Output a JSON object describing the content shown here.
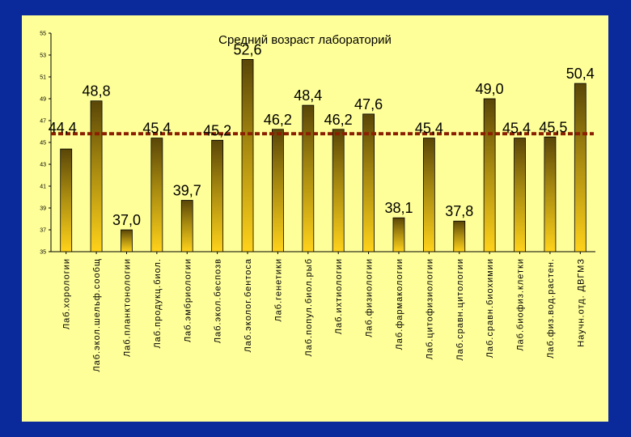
{
  "chart_data": {
    "type": "bar",
    "title": "Средний возраст лабораторий",
    "categories": [
      "Лаб.хорологии",
      "Лаб.экол.шельф.сообщ",
      "Лаб.планктонологии",
      "Лаб.продукц.биол.",
      "Лаб.эмбриологии",
      "Лаб.экол.беспозв",
      "Лаб.эколог.бентоса",
      "Лаб.генетики",
      "Лаб.попул.биол.рыб",
      "Лаб.ихтиологии",
      "Лаб.физиологии",
      "Лаб.фармакологии",
      "Лаб.цитофизиологии",
      "Лаб.сравн.цитологии",
      "Лаб.сравн.биохимии",
      "Лаб.биофиз.клетки",
      "Лаб.физ.вод.растен.",
      "Научн.отд. ДВГМЗ"
    ],
    "values": [
      44.4,
      48.8,
      37.0,
      45.4,
      39.7,
      45.2,
      52.6,
      46.2,
      48.4,
      46.2,
      47.6,
      38.1,
      45.4,
      37.8,
      49.0,
      45.4,
      45.5,
      50.4
    ],
    "data_labels": [
      "44,4",
      "48,8",
      "37,0",
      "45,4",
      "39,7",
      "45,2",
      "52,6",
      "46,2",
      "48,4",
      "46,2",
      "47,6",
      "38,1",
      "45,4",
      "37,8",
      "49,0",
      "45,4",
      "45,5",
      "50,4"
    ],
    "yticks": [
      "35",
      "37",
      "39",
      "41",
      "43",
      "45",
      "47",
      "49",
      "51",
      "53",
      "55"
    ],
    "ylim": [
      35,
      55
    ],
    "average_line": 45.8,
    "grid": false,
    "colors": {
      "background": "#ffff99",
      "frame": "#0a2a9c",
      "bar_top": "#5a4608",
      "bar_bottom": "#ffd21a",
      "average_line": "#8b2000"
    }
  }
}
